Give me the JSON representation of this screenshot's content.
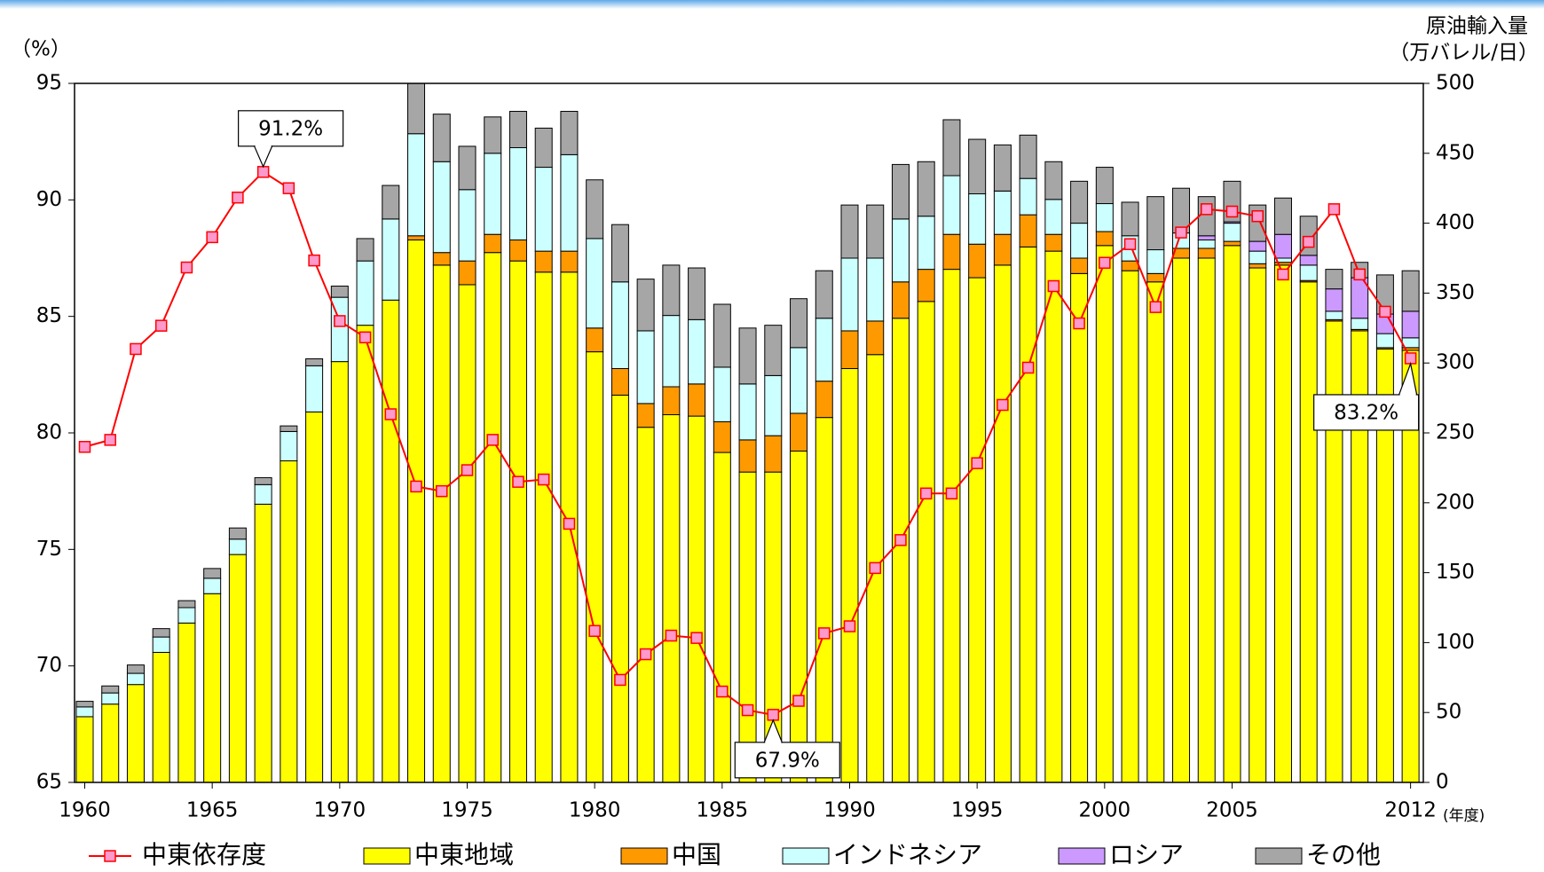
{
  "chart_data": {
    "type": "bar-line",
    "ylabel": "（%）",
    "y2label": "原油輸入量",
    "y2unit": "（万バレル/日）",
    "xlabel": "(年度)",
    "x": [
      1960,
      1961,
      1962,
      1963,
      1964,
      1965,
      1966,
      1967,
      1968,
      1969,
      1970,
      1971,
      1972,
      1973,
      1974,
      1975,
      1976,
      1977,
      1978,
      1979,
      1980,
      1981,
      1982,
      1983,
      1984,
      1985,
      1986,
      1987,
      1988,
      1989,
      1990,
      1991,
      1992,
      1993,
      1994,
      1995,
      1996,
      1997,
      1998,
      1999,
      2000,
      2001,
      2002,
      2003,
      2004,
      2005,
      2006,
      2007,
      2008,
      2009,
      2010,
      2011,
      2012
    ],
    "xlim": [
      1959.6,
      2012.5
    ],
    "xticks": [
      1960,
      1965,
      1970,
      1975,
      1980,
      1985,
      1990,
      1995,
      2000,
      2005,
      2012
    ],
    "ylim": [
      65,
      95
    ],
    "yticks": [
      65,
      70,
      75,
      80,
      85,
      90,
      95
    ],
    "y2lim": [
      0,
      500
    ],
    "y2ticks": [
      0,
      50,
      100,
      150,
      200,
      250,
      300,
      350,
      400,
      450,
      500
    ],
    "series": [
      {
        "name": "中東依存度",
        "type": "line",
        "axis": "y",
        "color": "#ff0000",
        "marker_color": "#ff99cc",
        "values": [
          79.4,
          79.7,
          83.6,
          84.6,
          87.1,
          88.4,
          90.1,
          91.2,
          90.5,
          87.4,
          84.8,
          84.1,
          80.8,
          77.7,
          77.5,
          78.4,
          79.7,
          77.9,
          78.0,
          76.1,
          71.5,
          69.4,
          70.5,
          71.3,
          71.2,
          68.9,
          68.1,
          67.9,
          68.5,
          71.4,
          71.7,
          74.2,
          75.4,
          77.4,
          77.4,
          78.7,
          81.2,
          82.8,
          86.3,
          84.7,
          87.3,
          88.1,
          85.4,
          88.6,
          89.6,
          89.5,
          89.3,
          86.8,
          88.2,
          89.6,
          86.8,
          85.2,
          83.2
        ]
      },
      {
        "name": "中東地域",
        "type": "bar",
        "axis": "y2",
        "color": "#ffff00",
        "values": [
          47,
          56,
          70,
          93,
          114,
          135,
          163,
          199,
          230,
          265,
          301,
          327,
          345,
          388,
          370,
          356,
          379,
          373,
          365,
          365,
          308,
          277,
          254,
          263,
          262,
          236,
          222,
          222,
          237,
          261,
          296,
          306,
          332,
          344,
          367,
          361,
          370,
          383,
          380,
          364,
          384,
          366,
          358,
          375,
          375,
          384,
          368,
          370,
          358,
          330,
          323,
          310,
          309
        ]
      },
      {
        "name": "中国",
        "type": "bar",
        "axis": "y2",
        "color": "#ff9900",
        "values": [
          0,
          0,
          0,
          0,
          0,
          0,
          0,
          0,
          0,
          0,
          0,
          0,
          0,
          3,
          9,
          17,
          13,
          15,
          15,
          15,
          17,
          19,
          17,
          20,
          23,
          22,
          23,
          26,
          27,
          26,
          27,
          24,
          26,
          23,
          25,
          24,
          22,
          23,
          12,
          11,
          10,
          7,
          6,
          7,
          7,
          3,
          3,
          2,
          1,
          1,
          1,
          1,
          2
        ]
      },
      {
        "name": "インドネシア",
        "type": "bar",
        "axis": "y2",
        "color": "#ccffff",
        "values": [
          7,
          8,
          8,
          11,
          11,
          11,
          11,
          14,
          21,
          33,
          46,
          46,
          58,
          73,
          65,
          51,
          58,
          66,
          60,
          69,
          64,
          62,
          52,
          51,
          46,
          39,
          40,
          43,
          47,
          45,
          52,
          45,
          45,
          38,
          42,
          36,
          31,
          26,
          25,
          25,
          20,
          18,
          17,
          11,
          6,
          13,
          9,
          3,
          11,
          6,
          8,
          10,
          7
        ]
      },
      {
        "name": "ロシア",
        "type": "bar",
        "axis": "y2",
        "color": "#cc99ff",
        "values": [
          0,
          0,
          0,
          0,
          0,
          0,
          0,
          0,
          0,
          0,
          0,
          0,
          0,
          0,
          0,
          0,
          0,
          0,
          0,
          0,
          0,
          0,
          0,
          0,
          0,
          0,
          0,
          0,
          0,
          0,
          0,
          0,
          0,
          0,
          0,
          0,
          0,
          0,
          0,
          0,
          0,
          0,
          0,
          0,
          3,
          1,
          7,
          17,
          7,
          16,
          29,
          14,
          19
        ]
      },
      {
        "name": "その他",
        "type": "bar",
        "axis": "y2",
        "color": "#a6a6a6",
        "values": [
          4,
          5,
          6,
          6,
          5,
          7,
          8,
          5,
          4,
          5,
          8,
          16,
          24,
          36,
          34,
          31,
          26,
          26,
          28,
          31,
          42,
          41,
          37,
          36,
          37,
          45,
          40,
          36,
          35,
          34,
          38,
          38,
          39,
          39,
          40,
          39,
          33,
          31,
          27,
          30,
          26,
          24,
          38,
          32,
          28,
          29,
          26,
          26,
          28,
          14,
          11,
          28,
          29
        ]
      }
    ],
    "annotations": [
      {
        "text": "91.2%",
        "x": 1967
      },
      {
        "text": "67.9%",
        "x": 1987
      },
      {
        "text": "83.2%",
        "x": 2012
      }
    ]
  }
}
